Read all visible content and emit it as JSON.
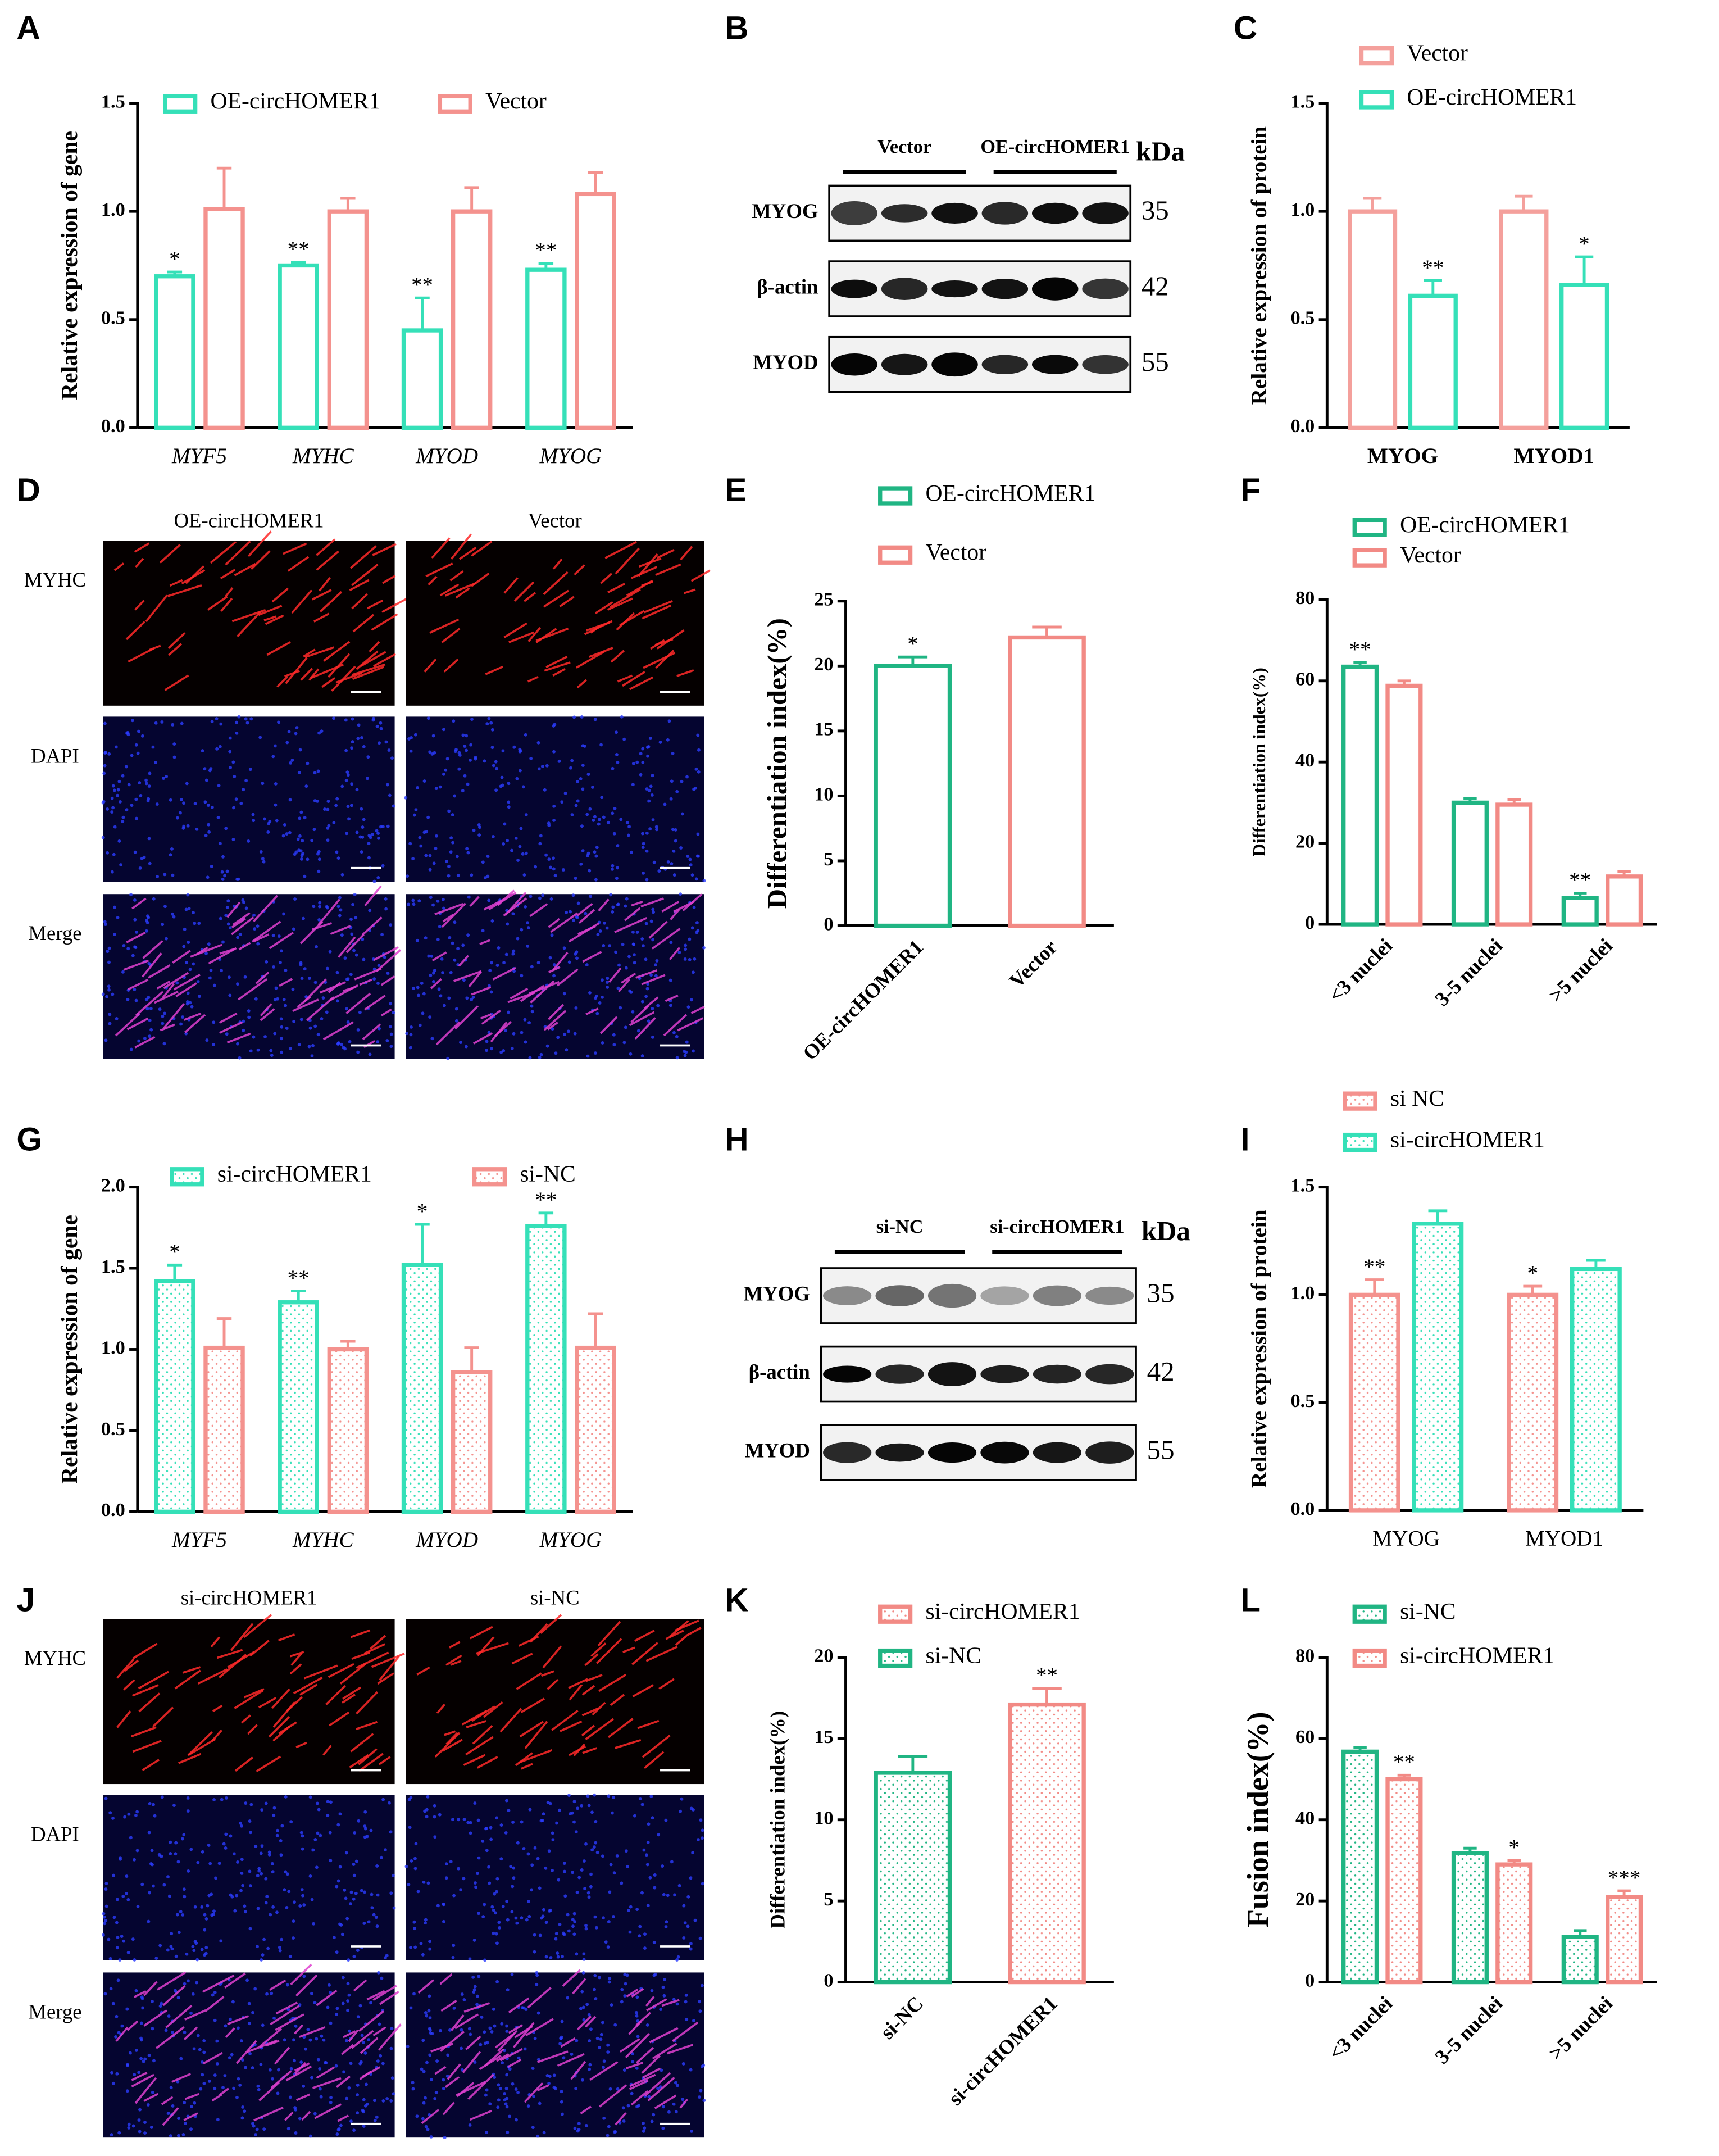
{
  "chart_data": [
    {
      "panel": "A",
      "type": "bar",
      "ylabel": "Relative expression of gene",
      "categories": [
        "MYF5",
        "MYHC",
        "MYOD",
        "MYOG"
      ],
      "ylim": [
        0,
        1.5
      ],
      "yticks": [
        {
          "value": 0,
          "label": "0.0"
        },
        {
          "value": 0.5,
          "label": "0.5"
        },
        {
          "value": 1,
          "label": "1.0"
        },
        {
          "value": 1.5,
          "label": "1.5"
        }
      ],
      "legend": "top",
      "series": [
        {
          "name": "OE-circHOMER1",
          "color": "#35e0b8",
          "values": [
            0.7,
            0.75,
            0.45,
            0.73
          ],
          "errors": [
            0.02,
            0.015,
            0.15,
            0.03
          ],
          "significance": [
            "*",
            "**",
            "**",
            "**"
          ]
        },
        {
          "name": "Vector",
          "color": "#f4928e",
          "values": [
            1.01,
            1.0,
            1.0,
            1.08
          ],
          "errors": [
            0.19,
            0.06,
            0.11,
            0.1
          ]
        }
      ]
    },
    {
      "panel": "C",
      "type": "bar",
      "ylabel": "Relative expression of protein",
      "categories": [
        "MYOG",
        "MYOD1"
      ],
      "ylim": [
        0,
        1.5
      ],
      "yticks": [
        {
          "value": 0,
          "label": "0.0"
        },
        {
          "value": 0.5,
          "label": "0.5"
        },
        {
          "value": 1,
          "label": "1.0"
        },
        {
          "value": 1.5,
          "label": "1.5"
        }
      ],
      "legend": "top",
      "series": [
        {
          "name": "Vector",
          "color": "#f4a09c",
          "values": [
            1.0,
            1.0
          ],
          "errors": [
            0.06,
            0.07
          ]
        },
        {
          "name": "OE-circHOMER1",
          "color": "#35e0b8",
          "values": [
            0.61,
            0.66
          ],
          "errors": [
            0.07,
            0.13
          ],
          "significance": [
            "**",
            "*"
          ]
        }
      ]
    },
    {
      "panel": "E",
      "type": "bar",
      "ylabel": "Differentiation index(%)",
      "categories": [
        "OE-circHOMER1",
        "Vector"
      ],
      "ylim": [
        0,
        25
      ],
      "yticks": [
        0,
        5,
        10,
        15,
        20,
        25
      ],
      "legend": "top",
      "series": [
        {
          "name": "OE-circHOMER1",
          "color": "#20b583",
          "values": [
            20,
            null
          ],
          "errors": [
            0.7,
            null
          ],
          "significance": [
            "*",
            null
          ]
        },
        {
          "name": "Vector",
          "color": "#f28a85",
          "values": [
            null,
            22.2
          ],
          "errors": [
            null,
            0.8
          ]
        }
      ]
    },
    {
      "panel": "F",
      "type": "bar",
      "ylabel": "Differentiation index(%)",
      "categories": [
        "<3 nuclei",
        "3-5 nuclei",
        ">5 nuclei"
      ],
      "ylim": [
        0,
        80
      ],
      "yticks": [
        0,
        20,
        40,
        60,
        80
      ],
      "legend": "top",
      "series": [
        {
          "name": "OE-circHOMER1",
          "color": "#20b583",
          "values": [
            63.5,
            30,
            6.5
          ],
          "errors": [
            1,
            1,
            1.2
          ],
          "significance": [
            "**",
            null,
            "**"
          ]
        },
        {
          "name": "Vector",
          "color": "#f28a85",
          "values": [
            58.8,
            29.5,
            11.8
          ],
          "errors": [
            1.2,
            1.2,
            1.2
          ]
        }
      ]
    },
    {
      "panel": "G",
      "type": "bar",
      "ylabel": "Relative expression of gene",
      "categories": [
        "MYF5",
        "MYHC",
        "MYOD",
        "MYOG"
      ],
      "ylim": [
        0,
        2
      ],
      "yticks": [
        {
          "value": 0,
          "label": "0.0"
        },
        {
          "value": 0.5,
          "label": "0.5"
        },
        {
          "value": 1,
          "label": "1.0"
        },
        {
          "value": 1.5,
          "label": "1.5"
        },
        {
          "value": 2,
          "label": "2.0"
        }
      ],
      "legend": "top",
      "fill": "dots",
      "series": [
        {
          "name": "si-circHOMER1",
          "color": "#35e0b8",
          "values": [
            1.42,
            1.29,
            1.52,
            1.76
          ],
          "errors": [
            0.1,
            0.07,
            0.25,
            0.08
          ],
          "significance": [
            "*",
            "**",
            "*",
            "**"
          ]
        },
        {
          "name": "si-NC",
          "color": "#f4928e",
          "values": [
            1.01,
            1.0,
            0.86,
            1.01
          ],
          "errors": [
            0.18,
            0.05,
            0.15,
            0.21
          ]
        }
      ]
    },
    {
      "panel": "I",
      "type": "bar",
      "ylabel": "Relative expression of protein",
      "categories": [
        "MYOG",
        "MYOD1"
      ],
      "ylim": [
        0,
        1.5
      ],
      "yticks": [
        {
          "value": 0,
          "label": "0.0"
        },
        {
          "value": 0.5,
          "label": "0.5"
        },
        {
          "value": 1,
          "label": "1.0"
        },
        {
          "value": 1.5,
          "label": "1.5"
        }
      ],
      "legend": "top",
      "fill": "dots",
      "series": [
        {
          "name": "si NC",
          "color": "#f4928e",
          "values": [
            1.0,
            1.0
          ],
          "errors": [
            0.07,
            0.04
          ],
          "significance": [
            "**",
            "*"
          ]
        },
        {
          "name": "si-circHOMER1",
          "color": "#35e0b8",
          "values": [
            1.33,
            1.12
          ],
          "errors": [
            0.06,
            0.04
          ]
        }
      ]
    },
    {
      "panel": "K",
      "type": "bar",
      "ylabel": "Differentiation index(%)",
      "categories": [
        "si-NC",
        "si-circHOMER1"
      ],
      "ylim": [
        0,
        20
      ],
      "yticks": [
        0,
        5,
        10,
        15,
        20
      ],
      "legend": "top",
      "fill": "dots",
      "series": [
        {
          "name": "si-circHOMER1",
          "color": "#f28a85",
          "values": [
            null,
            17.1
          ],
          "errors": [
            null,
            1
          ],
          "significance": [
            null,
            "**"
          ]
        },
        {
          "name": "si-NC",
          "color": "#20b583",
          "values": [
            12.9,
            null
          ],
          "errors": [
            1,
            null
          ]
        }
      ]
    },
    {
      "panel": "L",
      "type": "bar",
      "ylabel": "Fusion index(%)",
      "categories": [
        "<3 nuclei",
        "3-5 nuclei",
        ">5 nuclei"
      ],
      "ylim": [
        0,
        80
      ],
      "yticks": [
        0,
        20,
        40,
        60,
        80
      ],
      "legend": "top",
      "fill": "dots",
      "series": [
        {
          "name": "si-NC",
          "color": "#20b583",
          "values": [
            56.8,
            31.8,
            11.2
          ],
          "errors": [
            1,
            1.2,
            1.5
          ]
        },
        {
          "name": "si-circHOMER1",
          "color": "#f28a85",
          "values": [
            50,
            29,
            21
          ],
          "errors": [
            1,
            1,
            1.5
          ],
          "significance": [
            "**",
            "*",
            "***"
          ]
        }
      ]
    }
  ],
  "blots": [
    {
      "panel": "B",
      "groups": [
        "Vector",
        "OE-circHOMER1"
      ],
      "unit": "kDa",
      "bands": [
        {
          "name": "MYOG",
          "kda": 35
        },
        {
          "name": "β-actin",
          "kda": 42
        },
        {
          "name": "MYOD",
          "kda": 55
        }
      ]
    },
    {
      "panel": "H",
      "groups": [
        "si-NC",
        "si-circHOMER1"
      ],
      "unit": "kDa",
      "bands": [
        {
          "name": "MYOG",
          "kda": 35
        },
        {
          "name": "β-actin",
          "kda": 42
        },
        {
          "name": "MYOD",
          "kda": 55
        }
      ]
    }
  ],
  "micrographs": [
    {
      "panel": "D",
      "columns": [
        "OE-circHOMER1",
        "Vector"
      ],
      "rows": [
        "MYHC",
        "DAPI",
        "Merge"
      ]
    },
    {
      "panel": "J",
      "columns": [
        "si-circHOMER1",
        "si-NC"
      ],
      "rows": [
        "MYHC",
        "DAPI",
        "Merge"
      ]
    }
  ]
}
